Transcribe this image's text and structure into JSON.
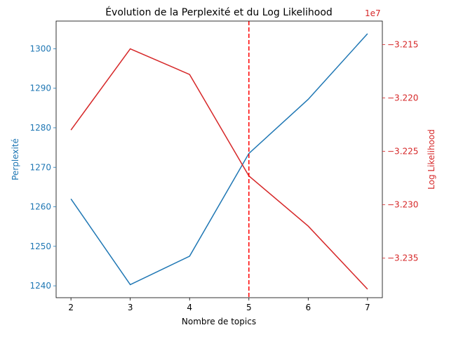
{
  "chart_data": {
    "type": "line",
    "title": "Évolution de la Perplexité et du Log Likelihood",
    "xlabel": "Nombre de topics",
    "x": [
      2,
      3,
      4,
      5,
      6,
      7
    ],
    "xticks": [
      "2",
      "3",
      "4",
      "5",
      "6",
      "7"
    ],
    "xlim": [
      1.75,
      7.25
    ],
    "left_axis": {
      "label": "Perplexité",
      "color": "#1f77b4",
      "ylim": [
        1237,
        1307
      ],
      "ticks": [
        1240,
        1250,
        1260,
        1270,
        1280,
        1290,
        1300
      ],
      "tick_labels": [
        "1240",
        "1250",
        "1260",
        "1270",
        "1280",
        "1290",
        "1300"
      ]
    },
    "right_axis": {
      "label": "Log Likelihood",
      "color": "#d62728",
      "offset_text": "1e7",
      "ylim": [
        -3.2387,
        -3.2128
      ],
      "ticks": [
        -3.235,
        -3.23,
        -3.225,
        -3.22,
        -3.215
      ],
      "tick_labels": [
        "−3.235",
        "−3.230",
        "−3.225",
        "−3.220",
        "−3.215"
      ]
    },
    "series": [
      {
        "axis": "left",
        "color": "#1f77b4",
        "values": [
          1262.0,
          1240.3,
          1247.5,
          1273.5,
          1287.2,
          1303.8
        ]
      },
      {
        "axis": "right",
        "color": "#d62728",
        "values": [
          -3.223,
          -3.2154,
          -3.2178,
          -3.2273,
          -3.232,
          -3.2379
        ]
      }
    ],
    "vline": {
      "x": 5,
      "color": "#ff0000",
      "style": "dashed"
    },
    "grid": false
  }
}
